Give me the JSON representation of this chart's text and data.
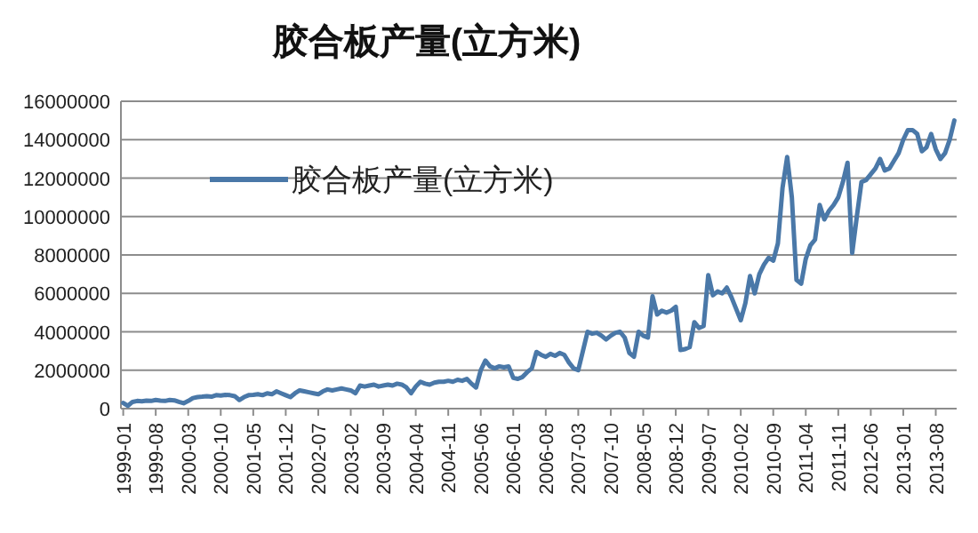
{
  "chart_data": {
    "type": "line",
    "title": "胶合板产量(立方米)",
    "categories": [
      "1999-01",
      null,
      null,
      null,
      null,
      null,
      null,
      "1999-08",
      null,
      null,
      null,
      null,
      null,
      null,
      "2000-03",
      null,
      null,
      null,
      null,
      null,
      null,
      "2000-10",
      null,
      null,
      null,
      null,
      null,
      null,
      "2001-05",
      null,
      null,
      null,
      null,
      null,
      null,
      "2001-12",
      null,
      null,
      null,
      null,
      null,
      null,
      "2002-07",
      null,
      null,
      null,
      null,
      null,
      null,
      "2003-02",
      null,
      null,
      null,
      null,
      null,
      null,
      "2003-09",
      null,
      null,
      null,
      null,
      null,
      null,
      "2004-04",
      null,
      null,
      null,
      null,
      null,
      null,
      "2004-11",
      null,
      null,
      null,
      null,
      null,
      null,
      "2005-06",
      null,
      null,
      null,
      null,
      null,
      null,
      "2006-01",
      null,
      null,
      null,
      null,
      null,
      null,
      "2006-08",
      null,
      null,
      null,
      null,
      null,
      null,
      "2007-03",
      null,
      null,
      null,
      null,
      null,
      null,
      "2007-10",
      null,
      null,
      null,
      null,
      null,
      null,
      "2008-05",
      null,
      null,
      null,
      null,
      null,
      null,
      "2008-12",
      null,
      null,
      null,
      null,
      null,
      null,
      "2009-07",
      null,
      null,
      null,
      null,
      null,
      null,
      "2010-02",
      null,
      null,
      null,
      null,
      null,
      null,
      "2010-09",
      null,
      null,
      null,
      null,
      null,
      null,
      "2011-04",
      null,
      null,
      null,
      null,
      null,
      null,
      "2011-11",
      null,
      null,
      null,
      null,
      null,
      null,
      "2012-06",
      null,
      null,
      null,
      null,
      null,
      null,
      "2013-01",
      null,
      null,
      null,
      null,
      null,
      null,
      "2013-08",
      null,
      null,
      null,
      null
    ],
    "series": [
      {
        "name": "胶合板产量(立方米)",
        "color": "#4a78a8",
        "values": [
          300000,
          150000,
          350000,
          400000,
          380000,
          420000,
          400000,
          450000,
          420000,
          400000,
          450000,
          430000,
          350000,
          280000,
          400000,
          550000,
          600000,
          620000,
          650000,
          620000,
          700000,
          680000,
          720000,
          700000,
          650000,
          450000,
          600000,
          700000,
          720000,
          750000,
          700000,
          800000,
          750000,
          900000,
          800000,
          700000,
          600000,
          800000,
          950000,
          900000,
          850000,
          800000,
          750000,
          900000,
          1000000,
          950000,
          1000000,
          1050000,
          1000000,
          950000,
          800000,
          1200000,
          1150000,
          1200000,
          1250000,
          1150000,
          1200000,
          1250000,
          1200000,
          1300000,
          1250000,
          1100000,
          800000,
          1150000,
          1400000,
          1300000,
          1250000,
          1350000,
          1400000,
          1400000,
          1450000,
          1400000,
          1500000,
          1450000,
          1550000,
          1300000,
          1100000,
          2000000,
          2500000,
          2200000,
          2100000,
          2200000,
          2150000,
          2200000,
          1600000,
          1550000,
          1650000,
          1900000,
          2100000,
          2950000,
          2800000,
          2700000,
          2850000,
          2750000,
          2900000,
          2800000,
          2400000,
          2100000,
          2000000,
          3000000,
          4000000,
          3900000,
          3950000,
          3800000,
          3600000,
          3800000,
          3950000,
          4000000,
          3700000,
          2900000,
          2700000,
          4000000,
          3800000,
          3700000,
          5850000,
          4900000,
          5100000,
          5000000,
          5100000,
          5300000,
          3050000,
          3100000,
          3200000,
          4500000,
          4200000,
          4300000,
          6950000,
          5900000,
          6100000,
          6000000,
          6300000,
          5800000,
          5200000,
          4600000,
          5500000,
          6900000,
          6000000,
          7000000,
          7500000,
          7850000,
          7700000,
          8600000,
          11500000,
          13100000,
          11000000,
          6700000,
          6500000,
          7800000,
          8500000,
          8800000,
          10600000,
          9850000,
          10300000,
          10600000,
          11000000,
          11800000,
          12800000,
          8100000,
          10000000,
          11800000,
          11900000,
          12200000,
          12500000,
          13000000,
          12400000,
          12500000,
          12900000,
          13300000,
          14000000,
          14500000,
          14500000,
          14300000,
          13400000,
          13600000,
          14300000,
          13500000,
          13000000,
          13300000,
          14000000,
          15000000
        ]
      }
    ],
    "ylim": [
      0,
      16000000
    ],
    "yticks": [
      0,
      2000000,
      4000000,
      6000000,
      8000000,
      10000000,
      12000000,
      14000000,
      16000000
    ],
    "grid": "y",
    "legend": "top left",
    "marker": "none",
    "line_style": "solid"
  }
}
